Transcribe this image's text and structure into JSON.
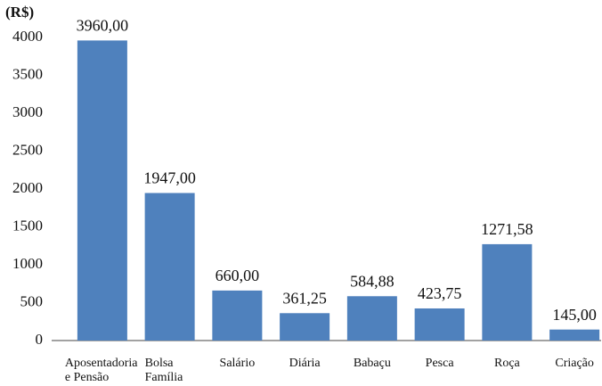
{
  "chart_data": {
    "type": "bar",
    "y_label": "(R$)",
    "categories": [
      [
        "Aposentadoria",
        "e Pensão"
      ],
      [
        "Bolsa",
        "Família"
      ],
      [
        "Salário"
      ],
      [
        "Diária"
      ],
      [
        "Babaçu"
      ],
      [
        "Pesca"
      ],
      [
        "Roça"
      ],
      [
        "Criação"
      ]
    ],
    "values": [
      3960,
      1947,
      660,
      361.25,
      584.88,
      423.75,
      1271.58,
      145
    ],
    "value_labels": [
      "3960,00",
      "1947,00",
      "660,00",
      "361,25",
      "584,88",
      "423,75",
      "1271,58",
      "145,00"
    ],
    "color": "#4f81bd",
    "ylim": [
      0,
      4000
    ],
    "yticks": [
      0,
      500,
      1000,
      1500,
      2000,
      2500,
      3000,
      3500,
      4000
    ],
    "grid": false
  }
}
